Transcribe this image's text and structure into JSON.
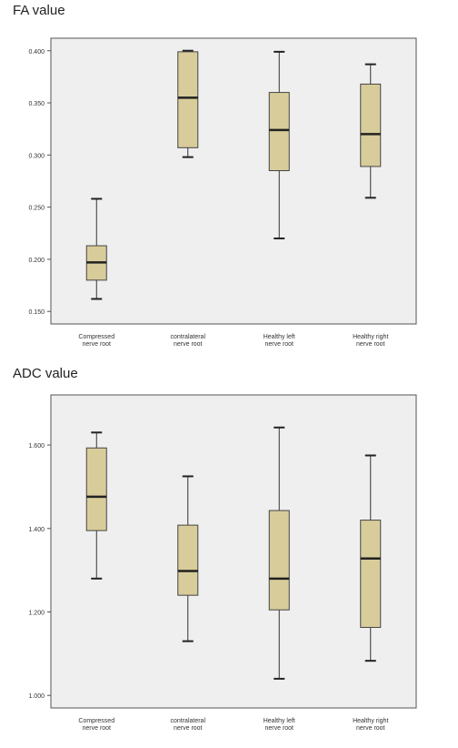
{
  "chart_data": [
    {
      "type": "box",
      "title": "FA value",
      "categories": [
        [
          "Compressed",
          "nerve root"
        ],
        [
          "contralateral",
          "nerve root"
        ],
        [
          "Healthy left",
          "nerve root"
        ],
        [
          "Healthy right",
          "nerve root"
        ]
      ],
      "yticks": [
        "0.150",
        "0.200",
        "0.250",
        "0.300",
        "0.350",
        "0.400"
      ],
      "ylim": [
        0.138,
        0.412
      ],
      "grid": false,
      "box_color": "#d8cc9a",
      "boxes": [
        {
          "min": 0.162,
          "q1": 0.18,
          "median": 0.197,
          "q3": 0.213,
          "max": 0.258
        },
        {
          "min": 0.298,
          "q1": 0.307,
          "median": 0.355,
          "q3": 0.399,
          "max": 0.4
        },
        {
          "min": 0.22,
          "q1": 0.285,
          "median": 0.324,
          "q3": 0.36,
          "max": 0.399
        },
        {
          "min": 0.259,
          "q1": 0.289,
          "median": 0.32,
          "q3": 0.368,
          "max": 0.387
        }
      ]
    },
    {
      "type": "box",
      "title": "ADC value",
      "categories": [
        [
          "Compressed",
          "nerve root"
        ],
        [
          "contralateral",
          "nerve root"
        ],
        [
          "Healthy left",
          "nerve root"
        ],
        [
          "Healthy right",
          "nerve root"
        ]
      ],
      "yticks": [
        "1.000",
        "1.200",
        "1.400",
        "1.600"
      ],
      "ylim": [
        0.97,
        1.72
      ],
      "grid": false,
      "box_color": "#d8cc9a",
      "boxes": [
        {
          "min": 1.28,
          "q1": 1.395,
          "median": 1.476,
          "q3": 1.593,
          "max": 1.63
        },
        {
          "min": 1.13,
          "q1": 1.24,
          "median": 1.298,
          "q3": 1.408,
          "max": 1.525
        },
        {
          "min": 1.04,
          "q1": 1.205,
          "median": 1.28,
          "q3": 1.443,
          "max": 1.642
        },
        {
          "min": 1.083,
          "q1": 1.163,
          "median": 1.328,
          "q3": 1.42,
          "max": 1.575
        }
      ]
    }
  ]
}
